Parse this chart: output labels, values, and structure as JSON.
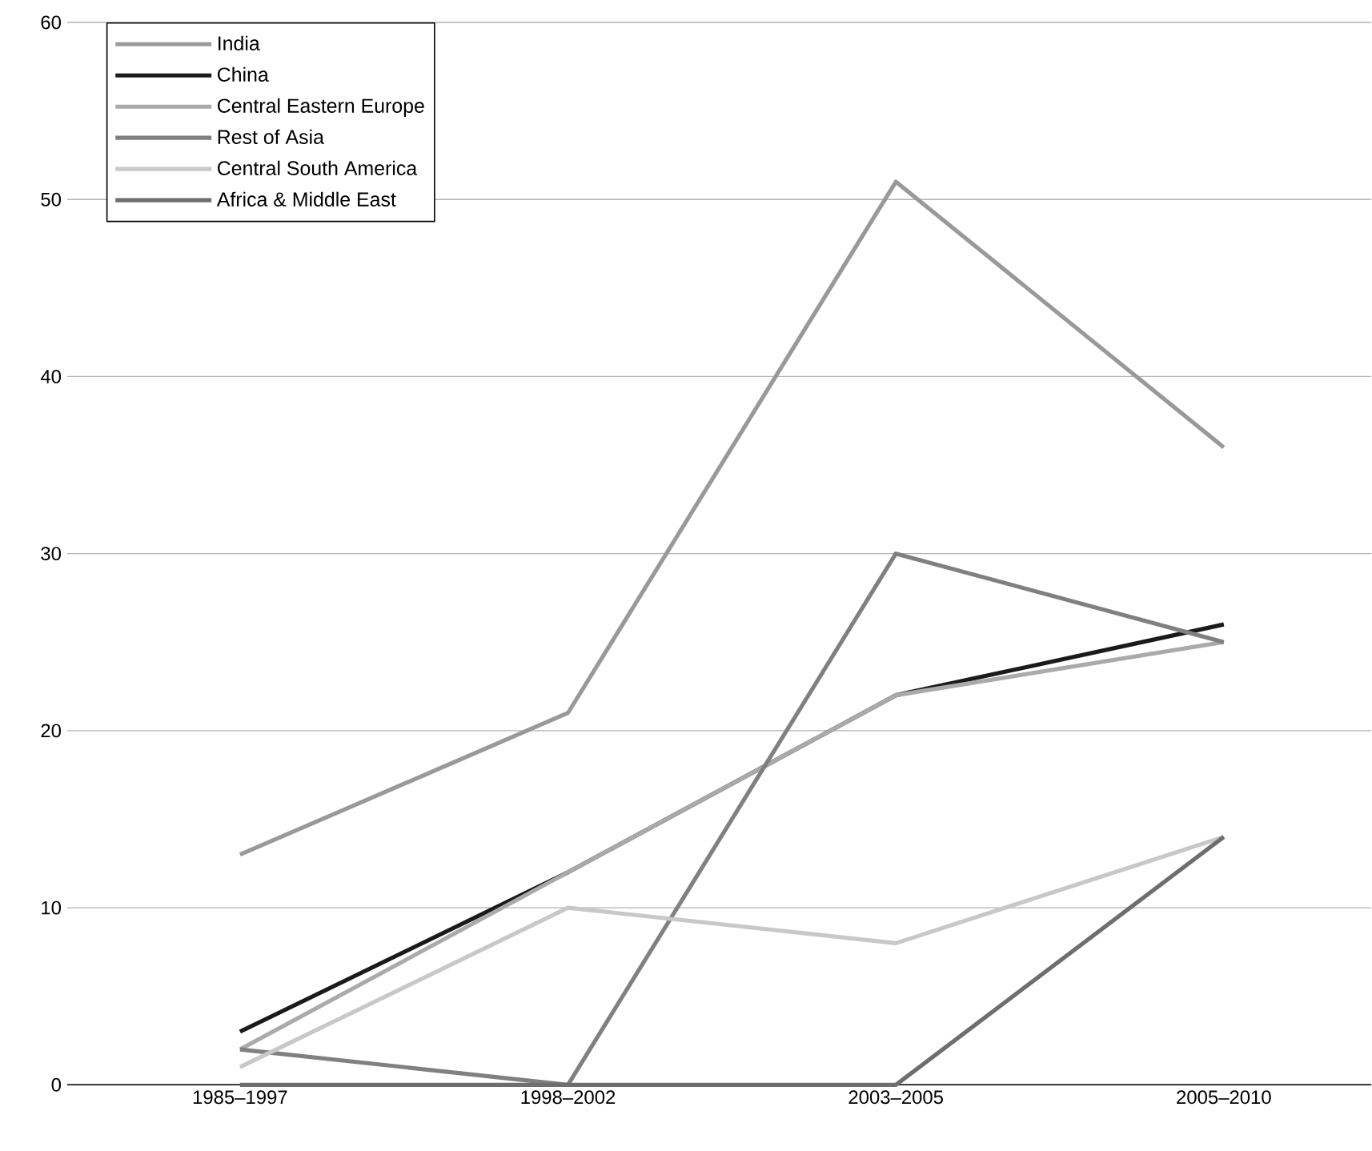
{
  "chart_data": {
    "type": "line",
    "categories": [
      "1985–1997",
      "1998–2002",
      "2003–2005",
      "2005–2010"
    ],
    "series": [
      {
        "name": "India",
        "color": "#999999",
        "values": [
          13,
          21,
          51,
          36
        ]
      },
      {
        "name": "China",
        "color": "#1a1a1a",
        "values": [
          3,
          12,
          22,
          26
        ]
      },
      {
        "name": "Central Eastern Europe",
        "color": "#aaaaaa",
        "values": [
          2,
          12,
          22,
          25
        ]
      },
      {
        "name": "Rest of Asia",
        "color": "#808080",
        "values": [
          2,
          0,
          30,
          25
        ]
      },
      {
        "name": "Central South America",
        "color": "#c8c8c8",
        "values": [
          1,
          10,
          8,
          14
        ]
      },
      {
        "name": "Africa & Middle East",
        "color": "#6e6e6e",
        "values": [
          0,
          0,
          0,
          14
        ]
      }
    ],
    "ylim": [
      0,
      60
    ],
    "yticks": [
      0,
      10,
      20,
      30,
      40,
      50,
      60
    ],
    "grid": "y",
    "legend": "top left",
    "marker": "none",
    "line_style": "solid"
  }
}
